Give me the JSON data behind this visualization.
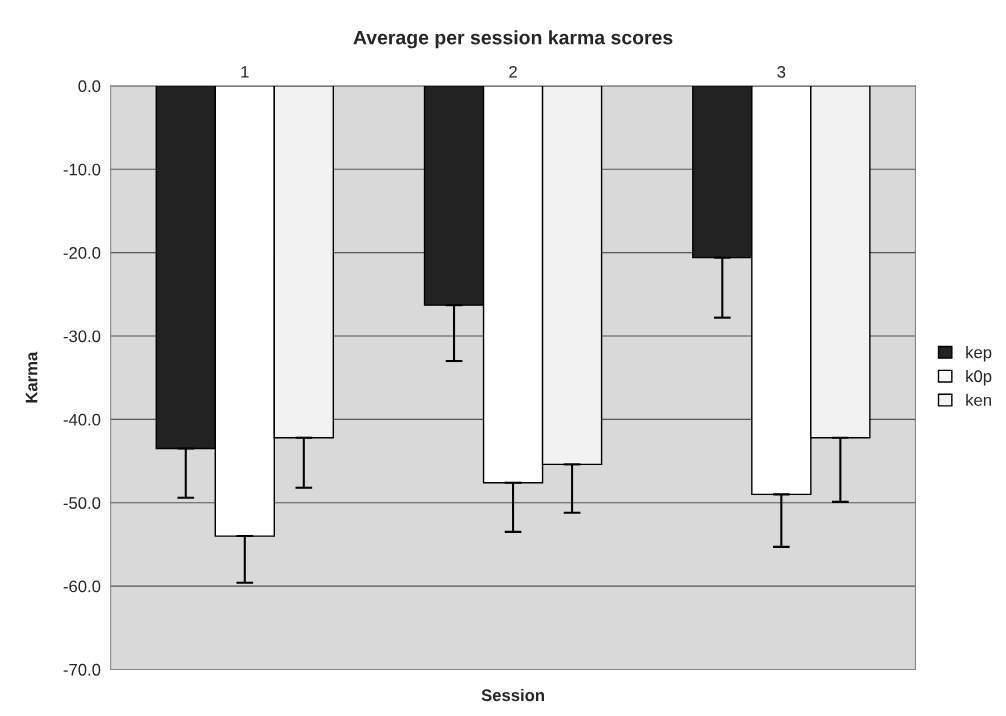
{
  "chart_data": {
    "type": "bar",
    "title": "Average per session karma scores",
    "xlabel": "Session",
    "ylabel": "Karma",
    "categories": [
      "1",
      "2",
      "3"
    ],
    "series": [
      {
        "name": "kep",
        "color": "#222222",
        "values": [
          -43.5,
          -26.3,
          -20.6
        ],
        "errors": [
          [
            -49.4,
            -43.5
          ],
          [
            -33.0,
            -26.3
          ],
          [
            -27.8,
            -20.6
          ]
        ]
      },
      {
        "name": "k0p",
        "color": "#ffffff",
        "values": [
          -54.0,
          -47.6,
          -49.0
        ],
        "errors": [
          [
            -59.6,
            -54.0
          ],
          [
            -53.5,
            -47.6
          ],
          [
            -55.3,
            -49.0
          ]
        ]
      },
      {
        "name": "ken",
        "color": "#f2f2f2",
        "values": [
          -42.2,
          -45.4,
          -42.2
        ],
        "errors": [
          [
            -48.2,
            -42.2
          ],
          [
            -51.2,
            -45.4
          ],
          [
            -49.9,
            -42.2
          ]
        ]
      }
    ],
    "ylim": [
      -70,
      0
    ],
    "yticks": [
      {
        "value": 0,
        "label": "0.0"
      },
      {
        "value": -10,
        "label": "-10.0"
      },
      {
        "value": -20,
        "label": "-20.0"
      },
      {
        "value": -30,
        "label": "-30.0"
      },
      {
        "value": -40,
        "label": "-40.0"
      },
      {
        "value": -50,
        "label": "-50.0"
      },
      {
        "value": -60,
        "label": "-60.0"
      },
      {
        "value": -70,
        "label": "-70.0"
      }
    ],
    "grid": "y",
    "legend": "right"
  }
}
